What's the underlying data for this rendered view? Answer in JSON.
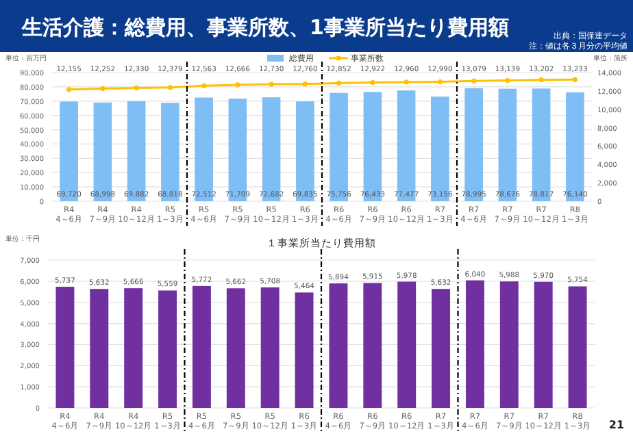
{
  "chart_data": [
    {
      "type": "bar",
      "title": "生活介護：総費用、事業所数、1事業所当たり費用額",
      "ylabel": "単位：百万円",
      "y2label": "単位：箇所",
      "annotations": [
        "出典：国保連データ",
        "注：値は各３月分の平均値"
      ],
      "categories": [
        "R4\n4～6月",
        "R4\n7～9月",
        "R4\n10～12月",
        "R5\n1～3月",
        "R5\n4～6月",
        "R5\n7～9月",
        "R5\n10～12月",
        "R6\n1～3月",
        "R6\n4～6月",
        "R6\n7～9月",
        "R6\n10～12月",
        "R7\n1～3月",
        "R7\n4～6月",
        "R7\n7～9月",
        "R7\n10～12月",
        "R8\n1～3月"
      ],
      "series": [
        {
          "name": "総費用",
          "type": "bar",
          "color": "#7fbdf5",
          "values": [
            69720,
            68998,
            69882,
            68818,
            72512,
            71709,
            72682,
            69835,
            75756,
            76433,
            77477,
            73156,
            78995,
            78676,
            78817,
            76140
          ],
          "value_labels": [
            "69,720",
            "68,998",
            "69,882",
            "68,818",
            "72,512",
            "71,709",
            "72,682",
            "69,835",
            "75,756",
            "76,433",
            "77,477",
            "73,156",
            "78,995",
            "78,676",
            "78,817",
            "76,140"
          ]
        },
        {
          "name": "事業所数",
          "type": "line",
          "axis": "y2",
          "color": "#ffc000",
          "marker": "circle",
          "values": [
            12155,
            12252,
            12330,
            12379,
            12563,
            12666,
            12730,
            12760,
            12852,
            12922,
            12960,
            12990,
            13079,
            13139,
            13202,
            13233
          ],
          "value_labels": [
            "12,155",
            "12,252",
            "12,330",
            "12,379",
            "12,563",
            "12,666",
            "12,730",
            "12,760",
            "12,852",
            "12,922",
            "12,960",
            "12,990",
            "13,079",
            "13,139",
            "13,202",
            "13,233"
          ]
        }
      ],
      "ylim": [
        0,
        90000
      ],
      "yticks": [
        {
          "value": 0,
          "label": "0"
        },
        {
          "value": 10000,
          "label": "10,000"
        },
        {
          "value": 20000,
          "label": "20,000"
        },
        {
          "value": 30000,
          "label": "30,000"
        },
        {
          "value": 40000,
          "label": "40,000"
        },
        {
          "value": 50000,
          "label": "50,000"
        },
        {
          "value": 60000,
          "label": "60,000"
        },
        {
          "value": 70000,
          "label": "70,000"
        },
        {
          "value": 80000,
          "label": "80,000"
        },
        {
          "value": 90000,
          "label": "90,000"
        }
      ],
      "y2lim": [
        0,
        14000
      ],
      "y2ticks": [
        {
          "value": 0,
          "label": "0"
        },
        {
          "value": 2000,
          "label": "2,000"
        },
        {
          "value": 4000,
          "label": "4,000"
        },
        {
          "value": 6000,
          "label": "6,000"
        },
        {
          "value": 8000,
          "label": "8,000"
        },
        {
          "value": 10000,
          "label": "10,000"
        },
        {
          "value": 12000,
          "label": "12,000"
        },
        {
          "value": 14000,
          "label": "14,000"
        }
      ],
      "grid": "y",
      "legend": "top"
    },
    {
      "type": "bar",
      "title": "１事業所当たり費用額",
      "ylabel": "単位：千円",
      "annotations": [
        "21"
      ],
      "categories": [
        "R4\n4～6月",
        "R4\n7～9月",
        "R4\n10～12月",
        "R5\n1～3月",
        "R5\n4～6月",
        "R5\n7～9月",
        "R5\n10～12月",
        "R6\n1～3月",
        "R6\n4～6月",
        "R6\n7～9月",
        "R6\n10～12月",
        "R7\n1～3月",
        "R7\n4～6月",
        "R7\n7～9月",
        "R7\n10～12月",
        "R8\n1～3月"
      ],
      "values": [
        5737,
        5632,
        5666,
        5559,
        5772,
        5662,
        5708,
        5464,
        5894,
        5915,
        5978,
        5632,
        6040,
        5988,
        5970,
        5754
      ],
      "value_labels": [
        "5,737",
        "5,632",
        "5,666",
        "5,559",
        "5,772",
        "5,662",
        "5,708",
        "5,464",
        "5,894",
        "5,915",
        "5,978",
        "5,632",
        "6,040",
        "5,988",
        "5,970",
        "5,754"
      ],
      "color": "#7030a0",
      "ylim": [
        0,
        7000
      ],
      "yticks": [
        {
          "value": 0,
          "label": "0"
        },
        {
          "value": 1000,
          "label": "1,000"
        },
        {
          "value": 2000,
          "label": "2,000"
        },
        {
          "value": 3000,
          "label": "3,000"
        },
        {
          "value": 4000,
          "label": "4,000"
        },
        {
          "value": 5000,
          "label": "5,000"
        },
        {
          "value": 6000,
          "label": "6,000"
        },
        {
          "value": 7000,
          "label": "7,000"
        }
      ],
      "grid": "y"
    }
  ]
}
